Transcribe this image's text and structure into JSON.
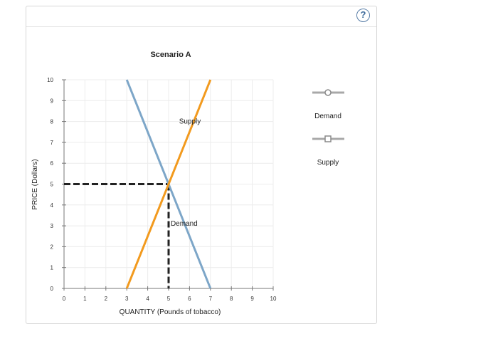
{
  "help": {
    "icon": "help-icon",
    "label": "?"
  },
  "chart_data": {
    "type": "line",
    "title": "Scenario A",
    "xlabel": "QUANTITY (Pounds of tobacco)",
    "ylabel": "PRICE (Dollars)",
    "xlim": [
      0,
      10
    ],
    "ylim": [
      0,
      10
    ],
    "x_ticks": [
      "0",
      "1",
      "2",
      "3",
      "4",
      "5",
      "6",
      "7",
      "8",
      "9",
      "10"
    ],
    "y_ticks": [
      "0",
      "1",
      "2",
      "3",
      "4",
      "5",
      "6",
      "7",
      "8",
      "9",
      "10"
    ],
    "grid": true,
    "series": [
      {
        "name": "Demand",
        "color": "#7da6c8",
        "marker": "circle",
        "points": [
          [
            3,
            10
          ],
          [
            7,
            0
          ]
        ],
        "label": "Demand",
        "label_at": [
          5.1,
          3
        ]
      },
      {
        "name": "Supply",
        "color": "#f29a1e",
        "marker": "square",
        "points": [
          [
            3,
            0
          ],
          [
            7,
            10
          ]
        ],
        "label": "Supply",
        "label_at": [
          5.5,
          7.9
        ]
      }
    ],
    "guides": {
      "color": "#222222",
      "horizontal_y": 5,
      "vertical_x": 5,
      "x_from": 0,
      "y_to": 5
    },
    "legend": {
      "placement": "right",
      "entries": [
        "Demand",
        "Supply"
      ]
    }
  }
}
